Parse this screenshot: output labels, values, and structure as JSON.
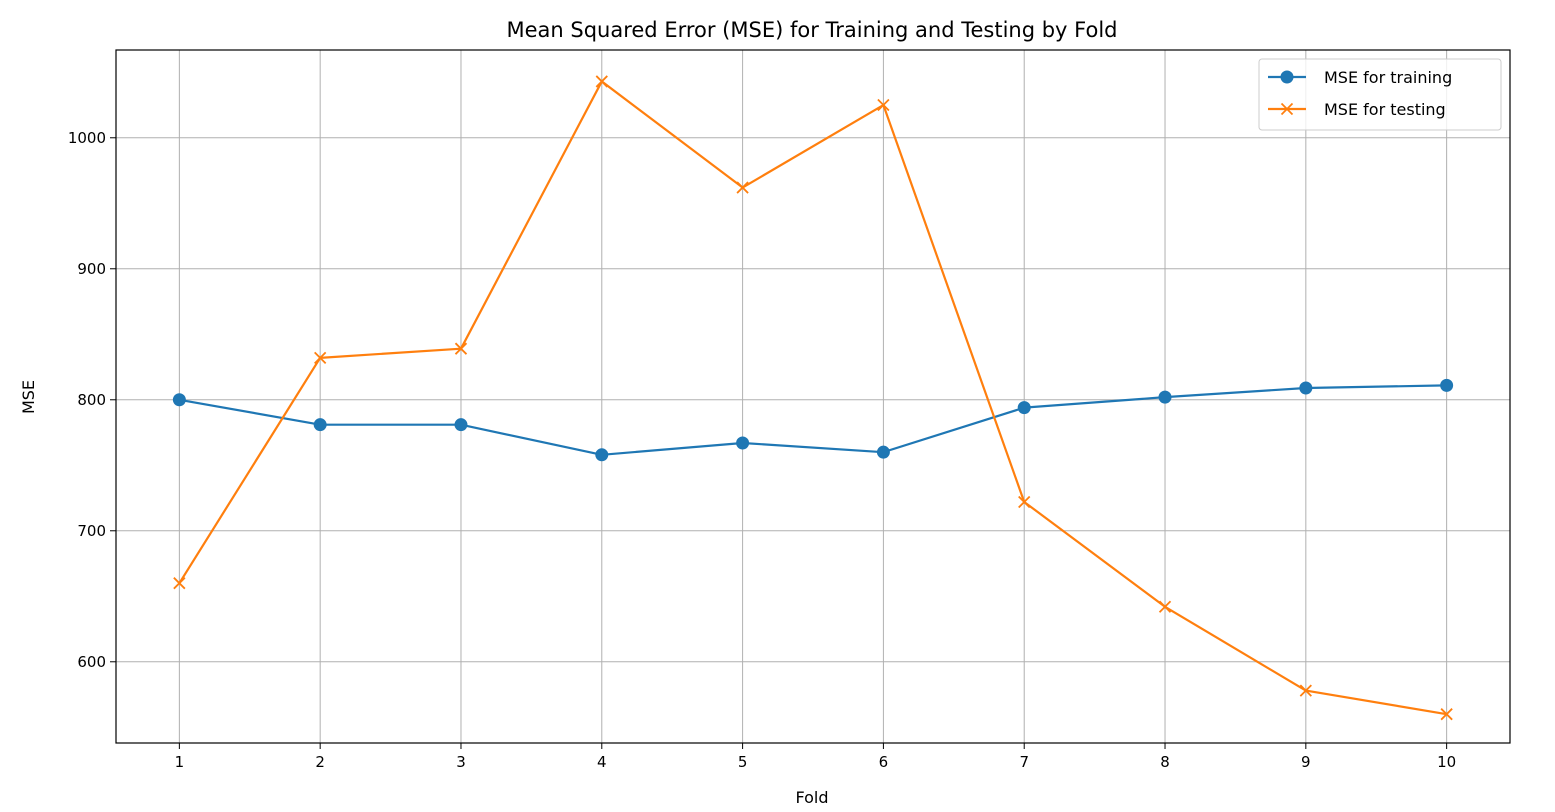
{
  "chart_data": {
    "type": "line",
    "title": "Mean Squared Error (MSE) for Training and Testing by Fold",
    "xlabel": "Fold",
    "ylabel": "MSE",
    "x": [
      1,
      2,
      3,
      4,
      5,
      6,
      7,
      8,
      9,
      10
    ],
    "x_ticks": [
      1,
      2,
      3,
      4,
      5,
      6,
      7,
      8,
      9,
      10
    ],
    "y_ticks": [
      600,
      700,
      800,
      900,
      1000
    ],
    "xlim": [
      0.55,
      10.45
    ],
    "ylim": [
      538,
      1067
    ],
    "grid": true,
    "legend_position": "upper right",
    "series": [
      {
        "name": "MSE for training",
        "marker": "circle",
        "color": "#1f77b4",
        "values": [
          800,
          781,
          781,
          758,
          767,
          760,
          794,
          802,
          809,
          811
        ]
      },
      {
        "name": "MSE for testing",
        "marker": "x",
        "color": "#ff7f0e",
        "values": [
          660,
          832,
          839,
          1043,
          962,
          1025,
          722,
          642,
          578,
          560
        ]
      }
    ]
  }
}
